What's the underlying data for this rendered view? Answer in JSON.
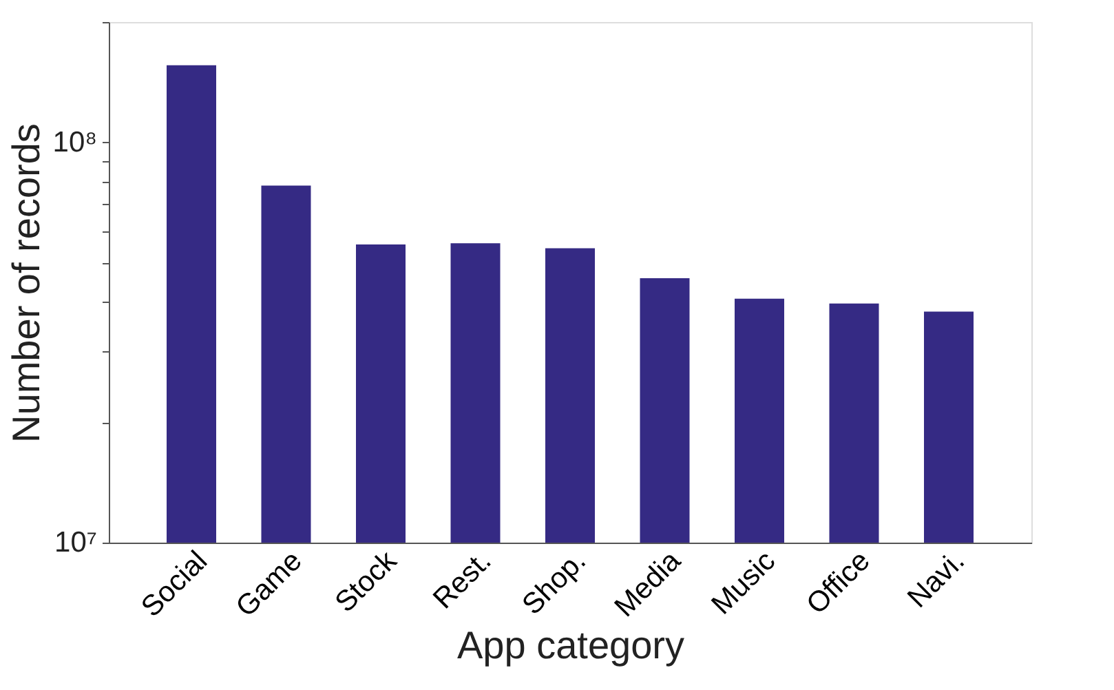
{
  "chart_data": {
    "type": "bar",
    "xlabel": "App category",
    "ylabel": "Number of records",
    "categories": [
      "Social",
      "Game",
      "Stock",
      "Rest.",
      "Shop.",
      "Media",
      "Music",
      "Office",
      "Navi."
    ],
    "values": [
      156000000.0,
      78000000.0,
      55600000.0,
      56000000.0,
      54400000.0,
      45800000.0,
      40700000.0,
      39600000.0,
      37800000.0
    ],
    "color": "#352a84",
    "log": true,
    "grid": false,
    "ylim": [
      10000000.0,
      200000000.0
    ],
    "yticks": [
      {
        "value": 10000000.0,
        "label": "10⁷"
      },
      {
        "value": 20000000.0,
        "label": null
      },
      {
        "value": 30000000.0,
        "label": null
      },
      {
        "value": 40000000.0,
        "label": null
      },
      {
        "value": 50000000.0,
        "label": null
      },
      {
        "value": 60000000.0,
        "label": null
      },
      {
        "value": 70000000.0,
        "label": null
      },
      {
        "value": 80000000.0,
        "label": null
      },
      {
        "value": 90000000.0,
        "label": null
      },
      {
        "value": 100000000.0,
        "label": "10⁸"
      },
      {
        "value": 200000000.0,
        "label": null
      }
    ]
  }
}
